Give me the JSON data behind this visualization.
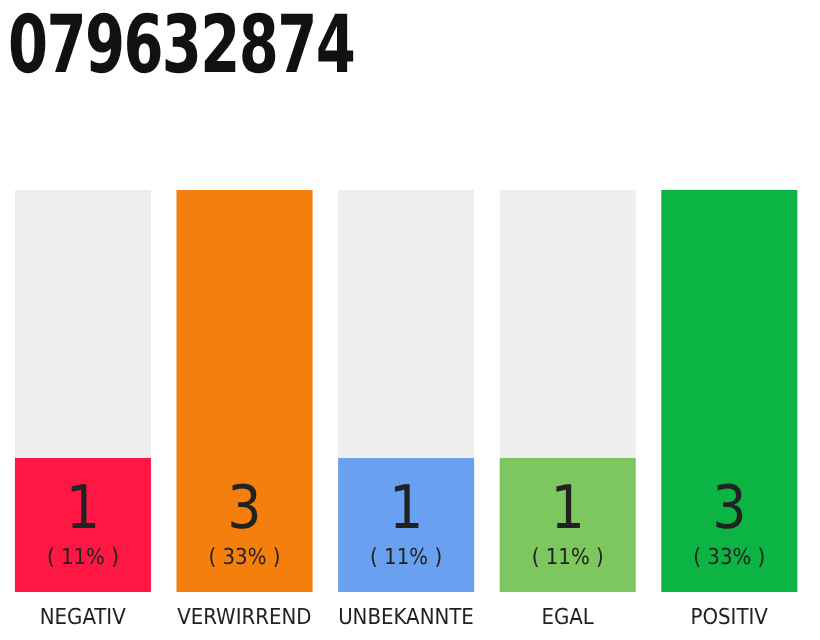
{
  "chart_data": {
    "type": "bar",
    "title": "079632874",
    "categories": [
      "NEGATIV",
      "VERWIRREND",
      "UNBEKANNTE",
      "EGAL",
      "POSITIV"
    ],
    "values": [
      1,
      3,
      1,
      1,
      3
    ],
    "colors": [
      "#ff1744",
      "#f57f0c",
      "#6aa0f0",
      "#7dc85e",
      "#0bb443"
    ],
    "value_labels": [
      "1\n( 11% )",
      "3\n( 33% )",
      "1\n( 11% )",
      "1\n( 11% )",
      "3\n( 33% )"
    ],
    "grid": false,
    "legend": false
  }
}
